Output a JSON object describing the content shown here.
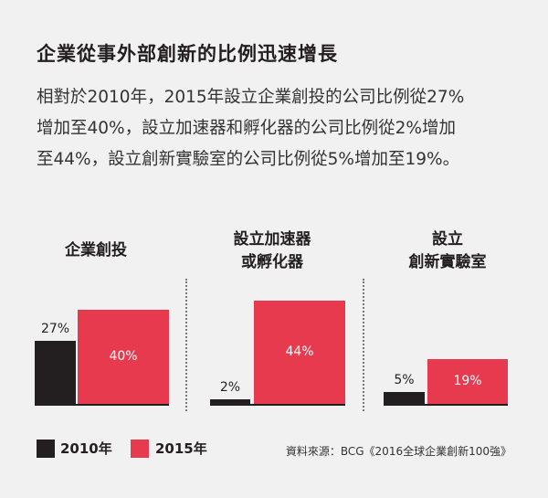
{
  "title": "企業從事外部創新的比例迅速增長",
  "paragraph": {
    "lines": [
      "相對於2010年，2015年設立企業創投的公司比例從27%",
      "增加至40%，設立加速器和孵化器的公司比例從2%增加",
      "至44%，設立創新實驗室的公司比例從5%增加至19%。"
    ]
  },
  "legend": [
    {
      "label": "2010年",
      "color": "#231f20"
    },
    {
      "label": "2015年",
      "color": "#e83a4e"
    }
  ],
  "source": "資料來源：BCG《2016全球企業創新100強》",
  "chart_data": {
    "type": "bar",
    "series_names": [
      "2010年",
      "2015年"
    ],
    "ylim": [
      0,
      44
    ],
    "panels": [
      {
        "title_lines": [
          "企業創投"
        ],
        "values": [
          27,
          40
        ],
        "labels": [
          "27%",
          "40%"
        ]
      },
      {
        "title_lines": [
          "設立加速器",
          "或孵化器"
        ],
        "values": [
          2,
          44
        ],
        "labels": [
          "2%",
          "44%"
        ]
      },
      {
        "title_lines": [
          "設立",
          "創新實驗室"
        ],
        "values": [
          5,
          19
        ],
        "labels": [
          "5%",
          "19%"
        ]
      }
    ],
    "colors": [
      "#231f20",
      "#e83a4e"
    ]
  }
}
